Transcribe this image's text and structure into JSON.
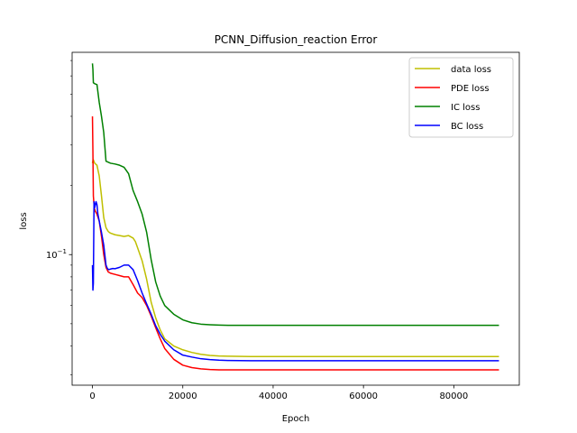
{
  "chart_data": {
    "type": "line",
    "title": "PCNN_Diffusion_reaction Error",
    "xlabel": "Epoch",
    "ylabel": "loss",
    "xlim": [
      -4500,
      94500
    ],
    "ylim": [
      0.027,
      0.76
    ],
    "yscale": "log",
    "x_ticks": [
      0,
      20000,
      40000,
      60000,
      80000
    ],
    "x_tick_labels": [
      "0",
      "20000",
      "40000",
      "60000",
      "80000"
    ],
    "y_major_tick": 0.1,
    "y_major_label_base": "10",
    "y_major_label_exp": "−1",
    "grid": false,
    "legend": "top-right",
    "series": [
      {
        "name": "data loss",
        "color": "#bfbf00",
        "x": [
          0,
          150,
          500,
          1000,
          1500,
          2000,
          2500,
          3000,
          3500,
          4000,
          5000,
          6000,
          7000,
          8000,
          9000,
          9500,
          10000,
          11000,
          12000,
          13000,
          14000,
          15000,
          16000,
          18000,
          20000,
          22000,
          24000,
          26000,
          28000,
          30000,
          35000,
          40000,
          50000,
          60000,
          70000,
          80000,
          90000
        ],
        "y": [
          0.25,
          0.26,
          0.25,
          0.245,
          0.22,
          0.18,
          0.145,
          0.131,
          0.126,
          0.124,
          0.122,
          0.121,
          0.12,
          0.121,
          0.118,
          0.114,
          0.107,
          0.094,
          0.078,
          0.062,
          0.053,
          0.047,
          0.043,
          0.04,
          0.0385,
          0.0375,
          0.0368,
          0.0364,
          0.0362,
          0.0361,
          0.036,
          0.036,
          0.036,
          0.036,
          0.036,
          0.036,
          0.036
        ]
      },
      {
        "name": "PDE loss",
        "color": "#ff0000",
        "x": [
          0,
          100,
          200,
          400,
          600,
          1000,
          1500,
          2000,
          2500,
          3000,
          3500,
          4000,
          5000,
          6000,
          7000,
          8000,
          9000,
          10000,
          11000,
          12000,
          13000,
          14000,
          15000,
          16000,
          18000,
          20000,
          22000,
          24000,
          26000,
          28000,
          30000,
          35000,
          40000,
          50000,
          60000,
          70000,
          80000,
          90000
        ],
        "y": [
          0.4,
          0.28,
          0.18,
          0.16,
          0.155,
          0.15,
          0.14,
          0.12,
          0.1,
          0.088,
          0.084,
          0.083,
          0.082,
          0.081,
          0.08,
          0.08,
          0.074,
          0.068,
          0.065,
          0.06,
          0.054,
          0.048,
          0.043,
          0.039,
          0.035,
          0.033,
          0.0322,
          0.0318,
          0.0316,
          0.0315,
          0.0315,
          0.0315,
          0.0315,
          0.0315,
          0.0315,
          0.0315,
          0.0315,
          0.0315
        ]
      },
      {
        "name": "IC loss",
        "color": "#008000",
        "x": [
          0,
          100,
          200,
          500,
          1000,
          1500,
          2000,
          2500,
          3000,
          4000,
          5000,
          6000,
          7000,
          8000,
          9000,
          10000,
          11000,
          12000,
          13000,
          14000,
          15000,
          16000,
          18000,
          20000,
          22000,
          24000,
          26000,
          28000,
          30000,
          35000,
          40000,
          50000,
          60000,
          70000,
          80000,
          90000
        ],
        "y": [
          0.68,
          0.64,
          0.56,
          0.555,
          0.55,
          0.46,
          0.4,
          0.34,
          0.255,
          0.25,
          0.248,
          0.245,
          0.24,
          0.225,
          0.19,
          0.17,
          0.15,
          0.125,
          0.095,
          0.076,
          0.066,
          0.06,
          0.055,
          0.052,
          0.0505,
          0.0498,
          0.0495,
          0.0493,
          0.0492,
          0.0492,
          0.0492,
          0.0492,
          0.0492,
          0.0492,
          0.0492,
          0.0492
        ]
      },
      {
        "name": "BC loss",
        "color": "#0000ff",
        "x": [
          0,
          100,
          200,
          350,
          500,
          800,
          1000,
          1200,
          1500,
          2000,
          2500,
          3000,
          3300,
          3600,
          4000,
          4500,
          5000,
          6000,
          7000,
          8000,
          9000,
          10000,
          11000,
          12000,
          13000,
          14000,
          15000,
          16000,
          18000,
          20000,
          22000,
          24000,
          26000,
          28000,
          30000,
          35000,
          40000,
          50000,
          60000,
          70000,
          80000,
          90000
        ],
        "y": [
          0.09,
          0.07,
          0.075,
          0.17,
          0.16,
          0.17,
          0.165,
          0.15,
          0.14,
          0.125,
          0.11,
          0.09,
          0.087,
          0.086,
          0.0865,
          0.087,
          0.0868,
          0.088,
          0.09,
          0.09,
          0.086,
          0.077,
          0.068,
          0.061,
          0.055,
          0.049,
          0.045,
          0.042,
          0.0385,
          0.0365,
          0.0358,
          0.0352,
          0.0349,
          0.0347,
          0.0346,
          0.0345,
          0.0345,
          0.0345,
          0.0345,
          0.0345,
          0.0345,
          0.0345
        ]
      }
    ]
  }
}
